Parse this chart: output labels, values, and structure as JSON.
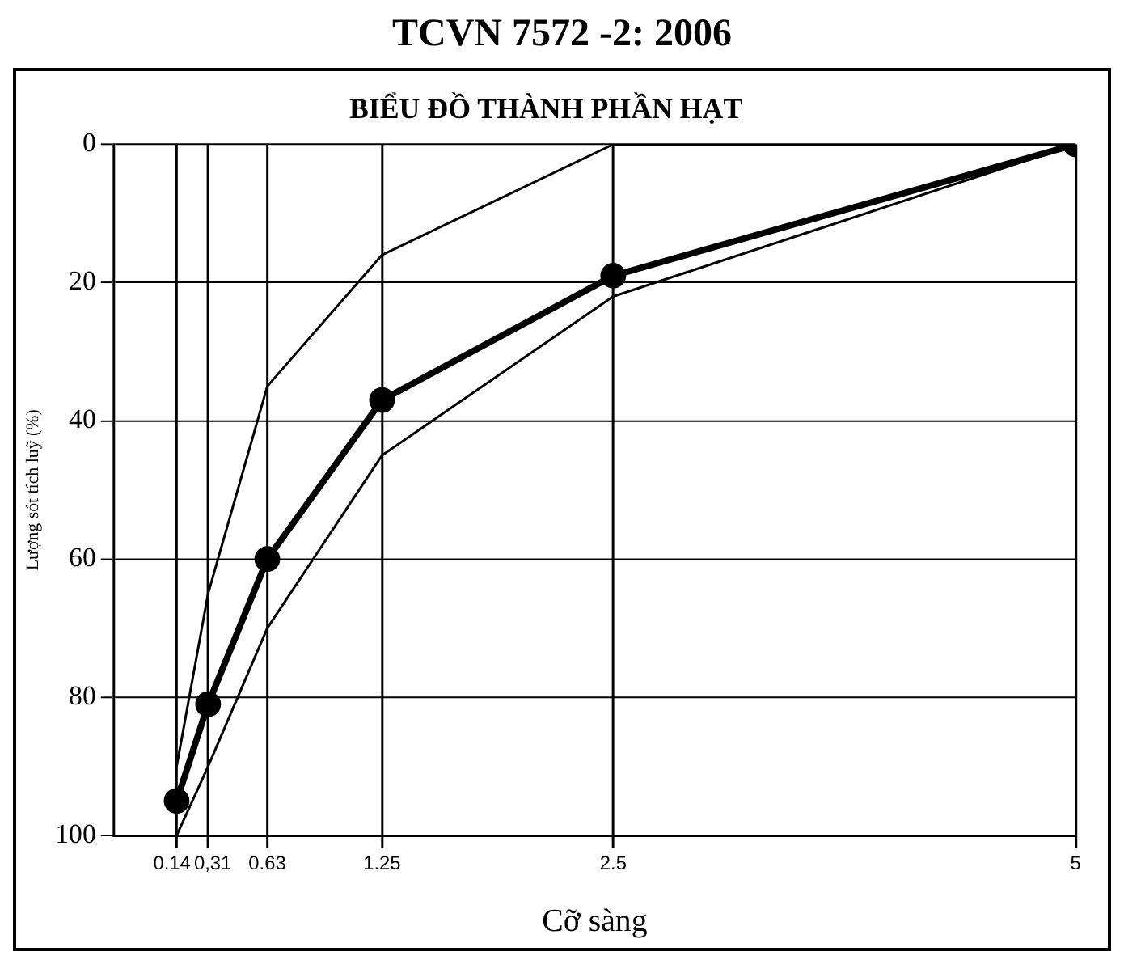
{
  "chart_data": {
    "type": "line",
    "title": "BIỂU ĐỒ THÀNH PHẦN HẠT",
    "xlabel": "Cỡ sàng",
    "ylabel": "Lượng sót tích luỹ (%)",
    "annotations": [
      "TCVN 7572 -2: 2006"
    ],
    "x": [
      0.14,
      0.31,
      0.63,
      1.25,
      2.5,
      5
    ],
    "series": [
      {
        "color": "#000000",
        "values": [
          90,
          65,
          35,
          16,
          0,
          0
        ],
        "marker": "none"
      },
      {
        "color": "#000000",
        "values": [
          95,
          81,
          60,
          37,
          19,
          0
        ],
        "marker": "circle"
      },
      {
        "color": "#000000",
        "values": [
          100,
          90,
          70,
          45,
          22,
          0
        ],
        "marker": "none"
      }
    ],
    "xlim": [
      -0.2,
      5
    ],
    "xticks": [
      0.14,
      {
        "value": 0.31,
        "label": "0,31"
      },
      0.63,
      1.25,
      2.5,
      5
    ],
    "ylim": [
      100,
      0
    ],
    "yticks": [
      0,
      20,
      40,
      60,
      80,
      100
    ],
    "grid": true,
    "legend": false,
    "line_style": "solid"
  }
}
